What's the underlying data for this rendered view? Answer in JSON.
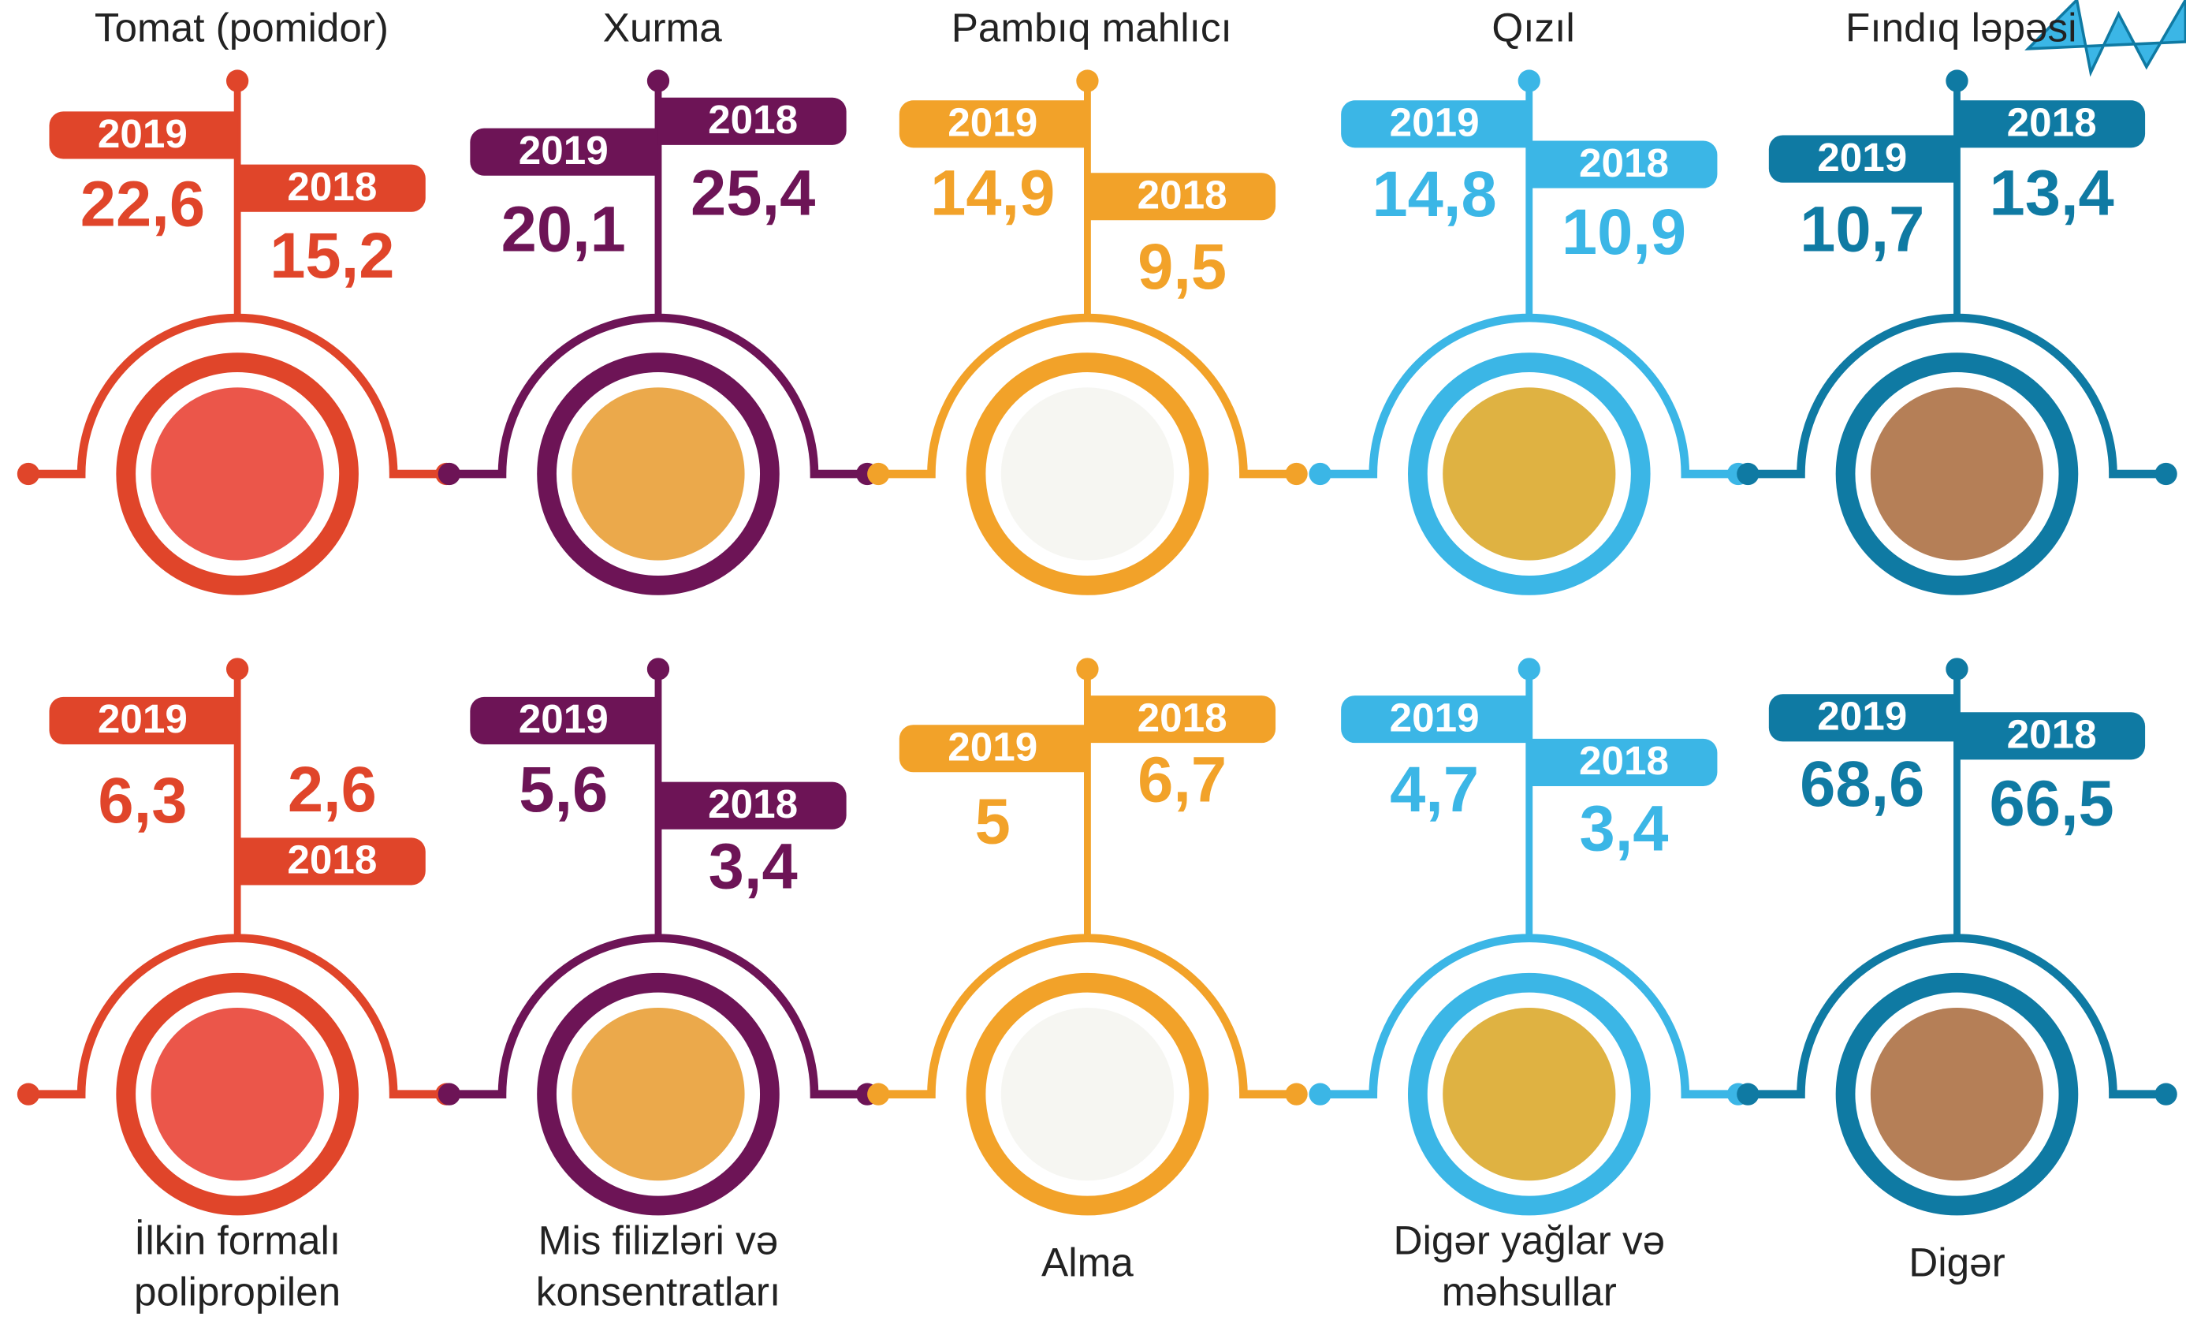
{
  "top_row": [
    {
      "name": "Tomat (pomidor)",
      "year_a": "2019",
      "value_a": "22,6",
      "year_b": "2018",
      "value_b": "15,2"
    },
    {
      "name": "Xurma",
      "year_a": "2019",
      "value_a": "20,1",
      "year_b": "2018",
      "value_b": "25,4"
    },
    {
      "name": "Pambıq mahlıcı",
      "year_a": "2019",
      "value_a": "14,9",
      "year_b": "2018",
      "value_b": "9,5"
    },
    {
      "name": "Qızıl",
      "year_a": "2019",
      "value_a": "14,8",
      "year_b": "2018",
      "value_b": "10,9"
    },
    {
      "name": "Fındıq ləpəsi",
      "year_a": "2019",
      "value_a": "10,7",
      "year_b": "2018",
      "value_b": "13,4"
    }
  ],
  "bottom_row": [
    {
      "name_lines": [
        "İlkin formalı",
        "polipropilen"
      ],
      "year_a": "2019",
      "value_a": "6,3",
      "year_b": "2018",
      "value_b": "2,6"
    },
    {
      "name_lines": [
        "Mis filizləri və",
        "konsentratları"
      ],
      "year_a": "2019",
      "value_a": "5,6",
      "year_b": "2018",
      "value_b": "3,4"
    },
    {
      "name_lines": [
        "Alma"
      ],
      "year_a": "2019",
      "value_a": "5",
      "year_b": "2018",
      "value_b": "6,7"
    },
    {
      "name_lines": [
        "Digər yağlar və",
        "məhsullar"
      ],
      "year_a": "2019",
      "value_a": "4,7",
      "year_b": "2018",
      "value_b": "3,4"
    },
    {
      "name_lines": [
        "Digər"
      ],
      "year_a": "2019",
      "value_a": "68,6",
      "year_b": "2018",
      "value_b": "66,5"
    }
  ]
}
